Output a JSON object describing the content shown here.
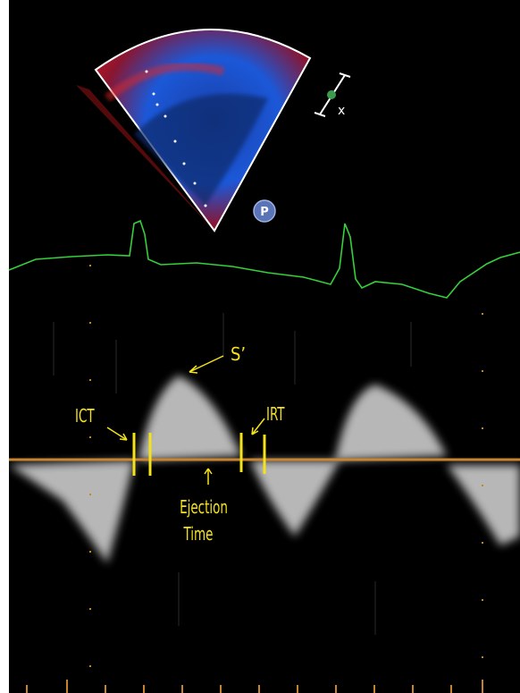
{
  "annotations": {
    "s_prime": "S’",
    "ict": "ICT",
    "irt": "IRT",
    "ejection_time": [
      "Ejection",
      "Time"
    ]
  },
  "icons": {
    "p_button": "P",
    "caliper_marker": "x"
  }
}
